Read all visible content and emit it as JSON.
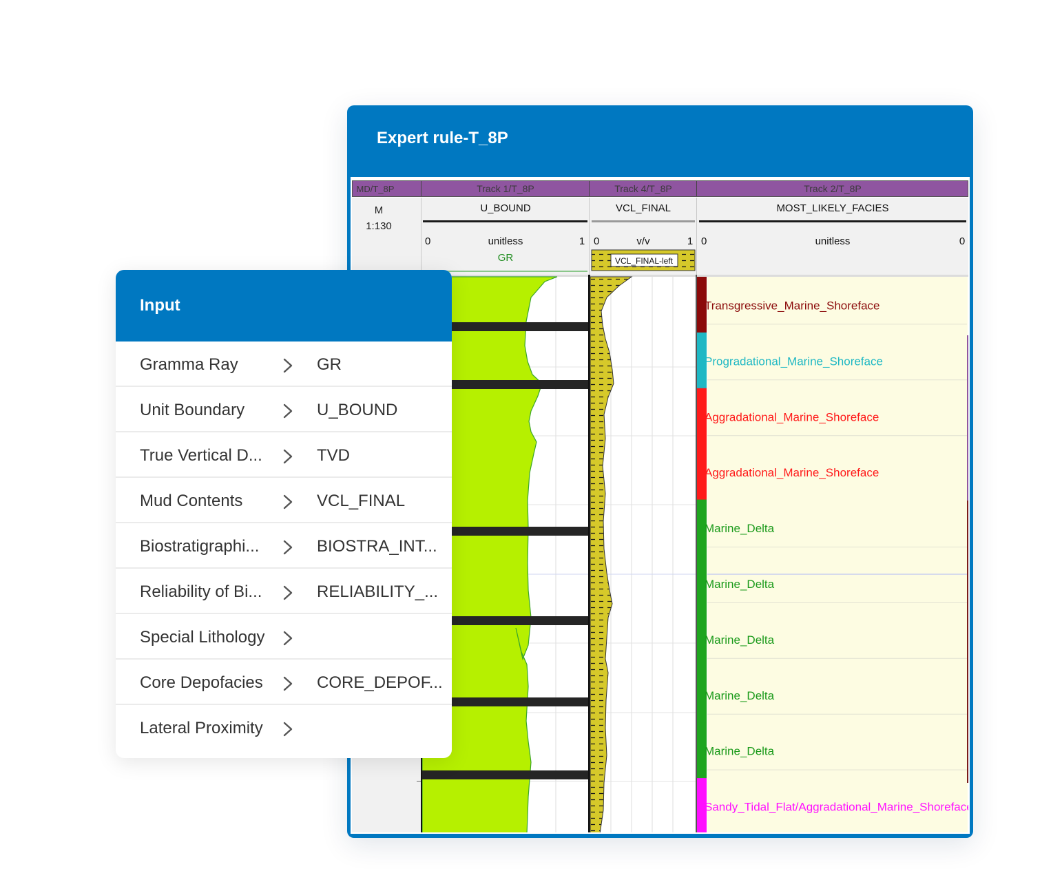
{
  "expert_window": {
    "title": "Expert rule-T_8P",
    "tracks": {
      "md": {
        "name": "MD/T_8P",
        "unit": "M",
        "scale": "1:130"
      },
      "track1": {
        "name": "Track 1/T_8P",
        "curve": "U_BOUND",
        "min": "0",
        "unit": "unitless",
        "max": "1",
        "sub_curve": "GR"
      },
      "track4": {
        "name": "Track 4/T_8P",
        "curve": "VCL_FINAL",
        "min": "0",
        "unit": "v/v",
        "max": "1",
        "fill_label": "VCL_FINAL-left"
      },
      "track2": {
        "name": "Track 2/T_8P",
        "curve": "MOST_LIKELY_FACIES",
        "min": "0",
        "unit": "unitless",
        "max": "0"
      }
    },
    "facies": [
      {
        "label": "Transgressive_Marine_Shoreface",
        "color": "#8b0a0a"
      },
      {
        "label": "Progradational_Marine_Shoreface",
        "color": "#1fb8c4"
      },
      {
        "label": "Aggradational_Marine_Shoreface",
        "color": "#ff1a1a"
      },
      {
        "label": "Aggradational_Marine_Shoreface",
        "color": "#ff1a1a"
      },
      {
        "label": "Marine_Delta",
        "color": "#1ea51e"
      },
      {
        "label": "Marine_Delta",
        "color": "#1ea51e"
      },
      {
        "label": "Marine_Delta",
        "color": "#1ea51e"
      },
      {
        "label": "Marine_Delta",
        "color": "#1ea51e"
      },
      {
        "label": "Marine_Delta",
        "color": "#1ea51e"
      },
      {
        "label": "Sandy_Tidal_Flat/Aggradational_Marine_Shoreface",
        "color": "#ff10ff"
      }
    ],
    "colors": {
      "track_header": "#8f55a0",
      "gr_fill": "#b6f000",
      "vcl_fill": "#d6c92a",
      "facies_bg": "#fdfce2"
    }
  },
  "input_panel": {
    "title": "Input",
    "rows": [
      {
        "label": "Gramma Ray",
        "value": "GR"
      },
      {
        "label": "Unit Boundary",
        "value": "U_BOUND"
      },
      {
        "label": "True Vertical D...",
        "value": "TVD"
      },
      {
        "label": "Mud Contents",
        "value": "VCL_FINAL"
      },
      {
        "label": "Biostratigraphi...",
        "value": "BIOSTRA_INT..."
      },
      {
        "label": "Reliability of Bi...",
        "value": "RELIABILITY_..."
      },
      {
        "label": "Special Lithology",
        "value": ""
      },
      {
        "label": "Core Depofacies",
        "value": "CORE_DEPOF..."
      },
      {
        "label": "Lateral Proximity",
        "value": ""
      }
    ]
  }
}
